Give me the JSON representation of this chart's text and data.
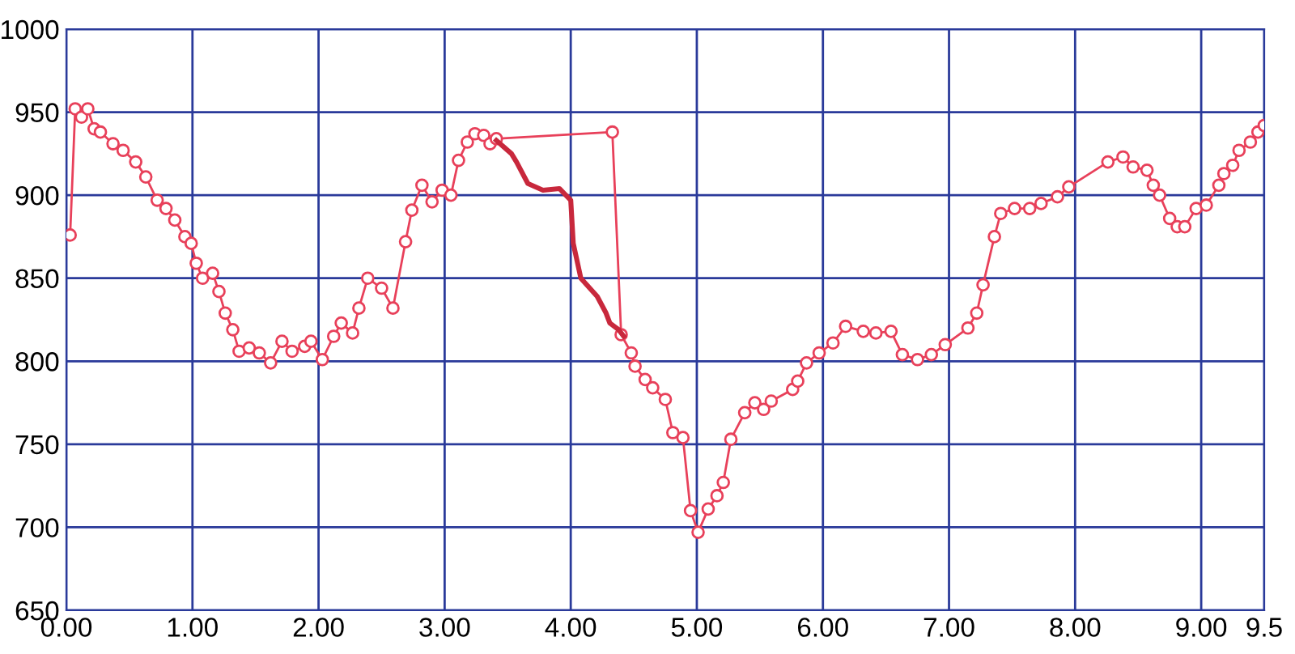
{
  "chart_data": {
    "type": "line",
    "xlim": [
      0,
      9.5
    ],
    "ylim": [
      650,
      1000
    ],
    "xticks": [
      {
        "value": 0,
        "label": "0.00"
      },
      {
        "value": 1,
        "label": "1.00"
      },
      {
        "value": 2,
        "label": "2.00"
      },
      {
        "value": 3,
        "label": "3.00"
      },
      {
        "value": 4,
        "label": "4.00"
      },
      {
        "value": 5,
        "label": "5.00"
      },
      {
        "value": 6,
        "label": "6.00"
      },
      {
        "value": 7,
        "label": "7.00"
      },
      {
        "value": 8,
        "label": "8.00"
      },
      {
        "value": 9,
        "label": "9.00"
      },
      9.5
    ],
    "yticks": [
      650,
      700,
      750,
      800,
      850,
      900,
      950,
      1000
    ],
    "grid": true,
    "series": [
      {
        "color": "#e8405a",
        "marker": "circle",
        "line_style": "solid",
        "x": [
          0.03,
          0.07,
          0.12,
          0.17,
          0.22,
          0.27,
          0.37,
          0.45,
          0.55,
          0.63,
          0.72,
          0.79,
          0.86,
          0.94,
          0.99,
          1.03,
          1.08,
          1.16,
          1.21,
          1.26,
          1.32,
          1.37,
          1.45,
          1.53,
          1.62,
          1.71,
          1.79,
          1.89,
          1.94,
          2.03,
          2.12,
          2.18,
          2.27,
          2.32,
          2.39,
          2.5,
          2.59,
          2.69,
          2.74,
          2.82,
          2.9,
          2.98,
          3.05,
          3.11,
          3.18,
          3.24,
          3.31,
          3.36,
          3.41,
          4.33,
          4.4,
          4.48,
          4.51,
          4.59,
          4.65,
          4.75,
          4.81,
          4.89,
          4.95,
          5.01,
          5.09,
          5.16,
          5.21,
          5.27,
          5.38,
          5.46,
          5.53,
          5.59,
          5.76,
          5.8,
          5.87,
          5.97,
          6.08,
          6.18,
          6.32,
          6.42,
          6.54,
          6.63,
          6.75,
          6.86,
          6.97,
          7.15,
          7.22,
          7.27,
          7.36,
          7.41,
          7.52,
          7.64,
          7.73,
          7.86,
          7.95,
          8.26,
          8.38,
          8.46,
          8.57,
          8.62,
          8.67,
          8.75,
          8.81,
          8.87,
          8.96,
          9.04,
          9.14,
          9.18,
          9.25,
          9.3,
          9.39,
          9.45,
          9.5
        ],
        "values": [
          876,
          952,
          947,
          952,
          940,
          938,
          931,
          927,
          920,
          911,
          897,
          892,
          885,
          875,
          871,
          859,
          850,
          853,
          842,
          829,
          819,
          806,
          808,
          805,
          799,
          812,
          806,
          809,
          812,
          801,
          815,
          823,
          817,
          832,
          850,
          844,
          832,
          872,
          891,
          906,
          896,
          903,
          900,
          921,
          932,
          937,
          936,
          931,
          934,
          938,
          816,
          805,
          797,
          789,
          784,
          777,
          757,
          754,
          710,
          697,
          711,
          719,
          727,
          753,
          769,
          775,
          771,
          776,
          783,
          788,
          799,
          805,
          811,
          821,
          818,
          817,
          818,
          804,
          801,
          804,
          810,
          820,
          829,
          846,
          875,
          889,
          892,
          892,
          895,
          899,
          905,
          920,
          923,
          917,
          915,
          906,
          900,
          886,
          881,
          881,
          892,
          894,
          906,
          913,
          918,
          927,
          932,
          938,
          942
        ]
      },
      {
        "color": "#c8283c",
        "marker": "none",
        "line_style": "solid",
        "x": [
          3.41,
          3.53,
          3.57,
          3.66,
          3.78,
          3.91,
          4.0,
          4.02,
          4.08,
          4.21,
          4.28,
          4.31,
          4.38,
          4.42
        ],
        "values": [
          933,
          925,
          920,
          907,
          903,
          904,
          897,
          871,
          850,
          839,
          829,
          823,
          819,
          815
        ]
      }
    ]
  }
}
